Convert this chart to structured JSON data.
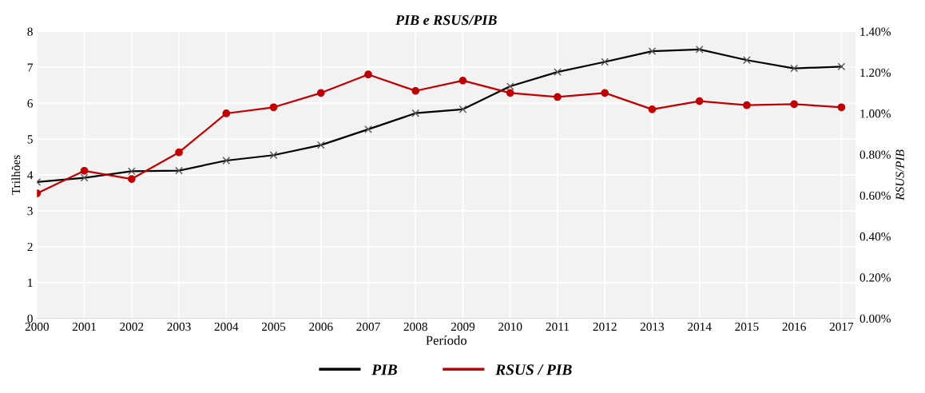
{
  "chart_data": {
    "type": "line",
    "title": "PIB e RSUS/PIB",
    "xlabel": "Período",
    "ylabel": "Trilhões",
    "y2label": "RSUS/PIB",
    "categories": [
      "2000",
      "2001",
      "2002",
      "2003",
      "2004",
      "2005",
      "2006",
      "2007",
      "2008",
      "2009",
      "2010",
      "2011",
      "2012",
      "2013",
      "2014",
      "2015",
      "2016",
      "2017"
    ],
    "series": [
      {
        "name": "PIB",
        "color": "#000000",
        "marker": "cross",
        "values": [
          3.8,
          3.92,
          4.1,
          4.12,
          4.4,
          4.55,
          4.83,
          5.27,
          5.72,
          5.83,
          6.47,
          6.87,
          7.15,
          7.45,
          7.5,
          7.2,
          6.97,
          7.02
        ]
      },
      {
        "name": "RSUS / PIB",
        "color": "#c00000",
        "marker": "circle",
        "axis": "y2",
        "values": [
          0.61,
          0.72,
          0.68,
          0.81,
          1.0,
          1.03,
          1.1,
          1.19,
          1.11,
          1.16,
          1.1,
          1.08,
          1.1,
          1.02,
          1.06,
          1.04,
          1.045,
          1.03
        ]
      }
    ],
    "ylim": [
      0,
      8
    ],
    "yticks": [
      0,
      1,
      2,
      3,
      4,
      5,
      6,
      7,
      8
    ],
    "y2lim": [
      0,
      1.4
    ],
    "y2ticks": [
      {
        "value": 0,
        "label": "0.00%"
      },
      {
        "value": 0.2,
        "label": "0.20%"
      },
      {
        "value": 0.4,
        "label": "0.40%"
      },
      {
        "value": 0.6,
        "label": "0.60%"
      },
      {
        "value": 0.8,
        "label": "0.80%"
      },
      {
        "value": 1.0,
        "label": "1.00%"
      },
      {
        "value": 1.2,
        "label": "1.20%"
      },
      {
        "value": 1.4,
        "label": "1.40%"
      }
    ],
    "grid": true,
    "legend": "bottom",
    "line_style": "solid"
  }
}
